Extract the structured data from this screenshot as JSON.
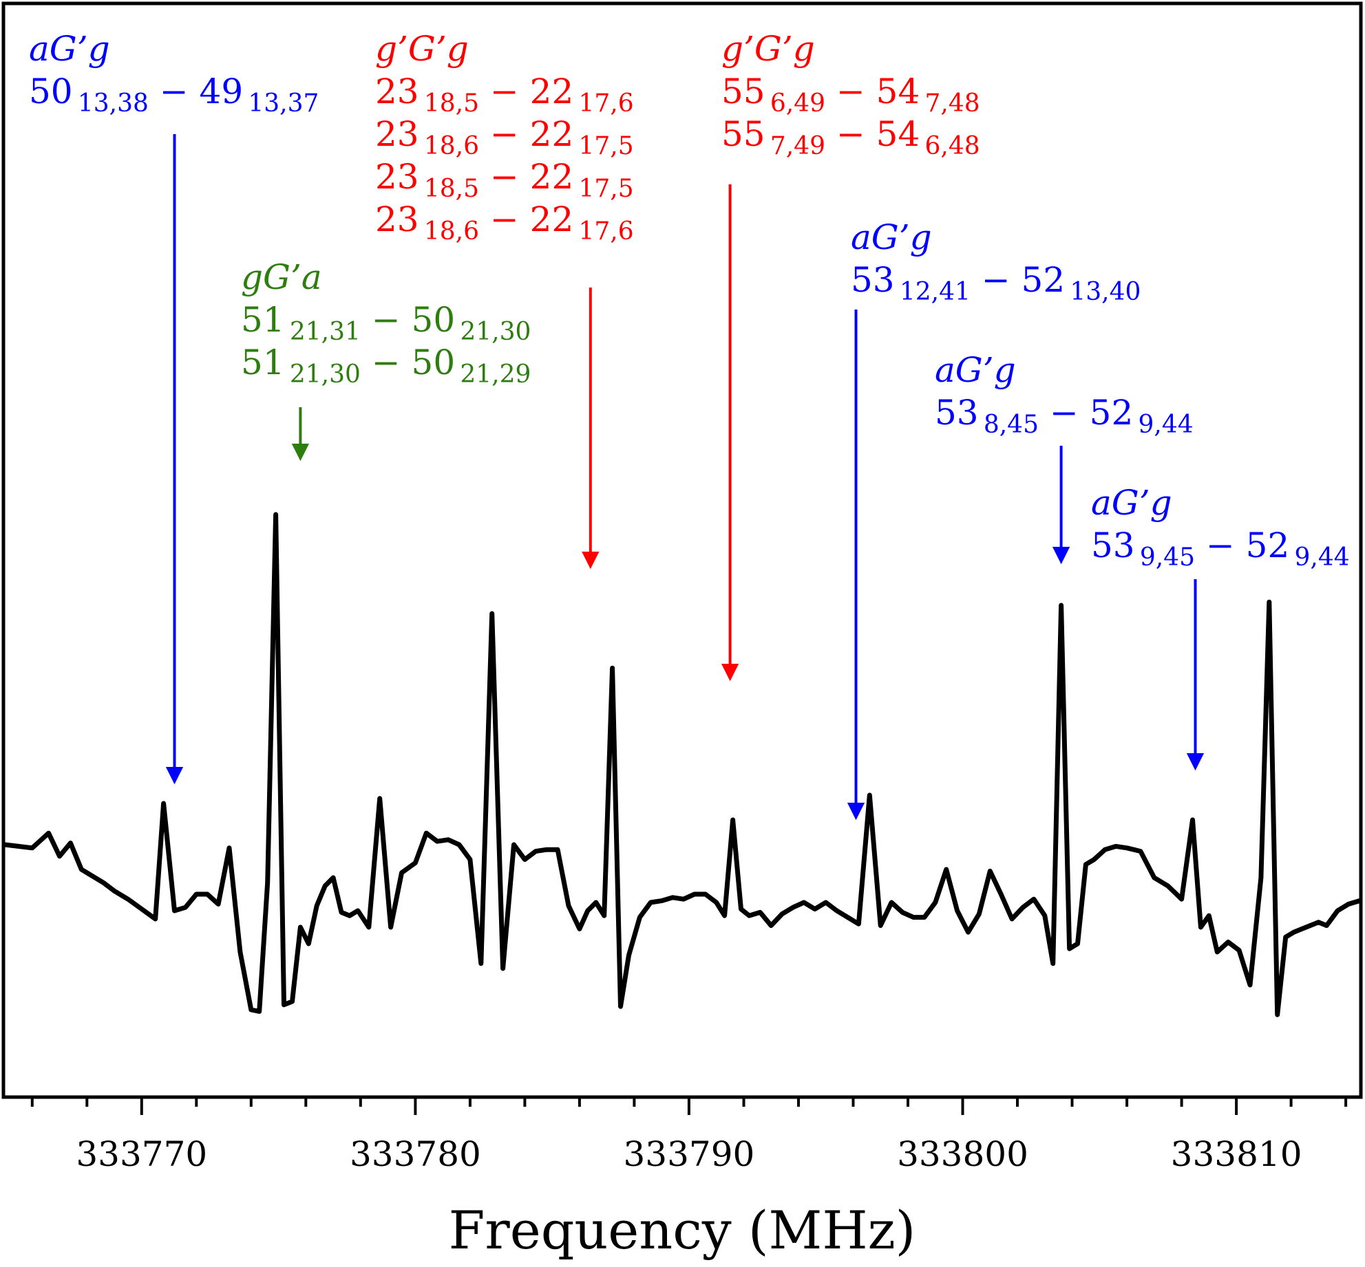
{
  "chart_data": {
    "type": "line",
    "title": "",
    "xlabel": "Frequency (MHz)",
    "ylabel": "",
    "xlim": [
      333765,
      333814.5
    ],
    "ylim": [
      -1.0,
      2.5
    ],
    "grid": false,
    "x_ticks": [
      333770,
      333780,
      333790,
      333800,
      333810
    ],
    "x_tick_labels": [
      "333770",
      "333780",
      "333790",
      "333800",
      "333810"
    ],
    "colors": {
      "trace": "#000000",
      "aGg": "#0000ff",
      "gGa": "#2e7d0f",
      "gGg": "#ff0000"
    },
    "series": [
      {
        "name": "spectrum",
        "x": [
          333765.0,
          333765.5,
          333766.0,
          333766.6,
          333767.0,
          333767.4,
          333767.8,
          333768.2,
          333768.6,
          333769.0,
          333769.5,
          333770.0,
          333770.5,
          333770.8,
          333771.2,
          333771.6,
          333772.0,
          333772.4,
          333772.8,
          333773.2,
          333773.6,
          333774.0,
          333774.3,
          333774.6,
          333774.9,
          333775.2,
          333775.5,
          333775.8,
          333776.1,
          333776.4,
          333776.7,
          333777.0,
          333777.3,
          333777.6,
          333777.9,
          333778.3,
          333778.7,
          333779.1,
          333779.5,
          333780.0,
          333780.4,
          333780.8,
          333781.2,
          333781.6,
          333782.0,
          333782.4,
          333782.8,
          333783.2,
          333783.6,
          333784.0,
          333784.4,
          333784.8,
          333785.2,
          333785.6,
          333786.0,
          333786.3,
          333786.6,
          333786.9,
          333787.2,
          333787.5,
          333787.8,
          333788.2,
          333788.6,
          333789.0,
          333789.4,
          333789.8,
          333790.2,
          333790.6,
          333791.0,
          333791.3,
          333791.6,
          333791.9,
          333792.2,
          333792.6,
          333793.0,
          333793.4,
          333793.8,
          333794.2,
          333794.6,
          333795.0,
          333795.4,
          333795.8,
          333796.2,
          333796.6,
          333797.0,
          333797.4,
          333797.8,
          333798.2,
          333798.6,
          333799.0,
          333799.4,
          333799.8,
          333800.2,
          333800.6,
          333801.0,
          333801.4,
          333801.8,
          333802.2,
          333802.6,
          333803.0,
          333803.3,
          333803.6,
          333803.9,
          333804.2,
          333804.5,
          333804.8,
          333805.2,
          333805.6,
          333806.0,
          333806.5,
          333807.0,
          333807.5,
          333808.0,
          333808.4,
          333808.7,
          333809.0,
          333809.3,
          333809.7,
          333810.1,
          333810.5,
          333810.9,
          333811.2,
          333811.5,
          333811.8,
          333812.1,
          333812.4,
          333812.7,
          333813.0,
          333813.3,
          333813.7,
          333814.1,
          333814.5
        ],
        "y": [
          0.05,
          0.04,
          0.03,
          0.12,
          -0.02,
          0.06,
          -0.1,
          -0.14,
          -0.18,
          -0.23,
          -0.28,
          -0.34,
          -0.4,
          0.3,
          -0.35,
          -0.33,
          -0.25,
          -0.25,
          -0.31,
          0.03,
          -0.6,
          -0.95,
          -0.96,
          -0.18,
          2.05,
          -0.92,
          -0.9,
          -0.45,
          -0.55,
          -0.32,
          -0.2,
          -0.15,
          -0.36,
          -0.38,
          -0.35,
          -0.45,
          0.33,
          -0.45,
          -0.12,
          -0.06,
          0.12,
          0.07,
          0.08,
          0.05,
          -0.04,
          -0.67,
          1.45,
          -0.7,
          0.05,
          -0.04,
          0.01,
          0.02,
          0.02,
          -0.32,
          -0.46,
          -0.35,
          -0.3,
          -0.38,
          1.12,
          -0.93,
          -0.62,
          -0.39,
          -0.3,
          -0.29,
          -0.27,
          -0.28,
          -0.25,
          -0.25,
          -0.3,
          -0.38,
          0.2,
          -0.34,
          -0.38,
          -0.36,
          -0.44,
          -0.37,
          -0.33,
          -0.3,
          -0.34,
          -0.3,
          -0.35,
          -0.39,
          -0.43,
          0.35,
          -0.44,
          -0.3,
          -0.36,
          -0.39,
          -0.39,
          -0.3,
          -0.1,
          -0.35,
          -0.48,
          -0.37,
          -0.11,
          -0.25,
          -0.4,
          -0.33,
          -0.28,
          -0.38,
          -0.67,
          1.5,
          -0.58,
          -0.55,
          -0.07,
          -0.04,
          0.02,
          0.04,
          0.03,
          0.01,
          -0.15,
          -0.2,
          -0.28,
          0.2,
          -0.45,
          -0.38,
          -0.6,
          -0.54,
          -0.59,
          -0.8,
          -0.15,
          1.52,
          -0.98,
          -0.51,
          -0.48,
          -0.46,
          -0.44,
          -0.42,
          -0.44,
          -0.35,
          -0.31,
          -0.29
        ]
      }
    ],
    "annotations": [
      {
        "conformer": "aG’g",
        "lines": [
          [
            "50",
            "13,38",
            "49",
            "13,37"
          ]
        ],
        "color": "#0000ff",
        "arrow_x": 333771.2
      },
      {
        "conformer": "gG’a",
        "lines": [
          [
            "51",
            "21,31",
            "50",
            "21,30"
          ],
          [
            "51",
            "21,30",
            "50",
            "21,29"
          ]
        ],
        "color": "#2e7d0f",
        "arrow_x": 333775.8
      },
      {
        "conformer": "g’G’g",
        "lines": [
          [
            "23",
            "18,5",
            "22",
            "17,6"
          ],
          [
            "23",
            "18,6",
            "22",
            "17,5"
          ],
          [
            "23",
            "18,5",
            "22",
            "17,5"
          ],
          [
            "23",
            "18,6",
            "22",
            "17,6"
          ]
        ],
        "color": "#ff0000",
        "arrow_x": 333786.4
      },
      {
        "conformer": "g’G’g",
        "lines": [
          [
            "55",
            "6,49",
            "54",
            "7,48"
          ],
          [
            "55",
            "7,49",
            "54",
            "6,48"
          ]
        ],
        "color": "#ff0000",
        "arrow_x": 333791.5
      },
      {
        "conformer": "aG’g",
        "lines": [
          [
            "53",
            "12,41",
            "52",
            "13,40"
          ]
        ],
        "color": "#0000ff",
        "arrow_x": 333796.1
      },
      {
        "conformer": "aG’g",
        "lines": [
          [
            "53",
            "8,45",
            "52",
            "9,44"
          ]
        ],
        "color": "#0000ff",
        "arrow_x": 333803.6
      },
      {
        "conformer": "aG’g",
        "lines": [
          [
            "53",
            "9,45",
            "52",
            "9,44"
          ]
        ],
        "color": "#0000ff",
        "arrow_x": 333808.5
      }
    ]
  }
}
